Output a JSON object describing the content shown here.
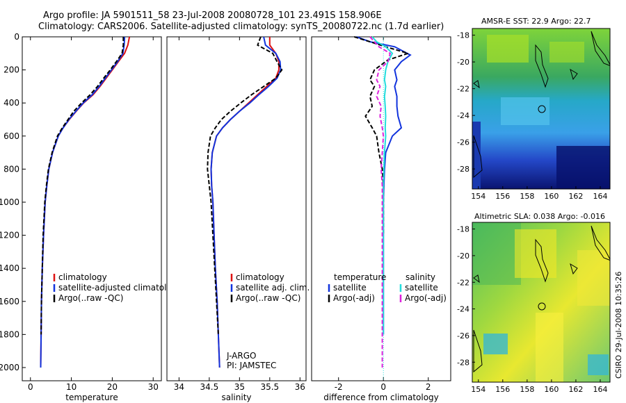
{
  "title_line1": "Argo profile: JA 5901511_58 23-Jul-2008 20080728_101 23.491S 158.906E",
  "title_line2": "Climatology: CARS2006. Satellite-adjusted climatology: synTS_20080722.nc (1.7d earlier)",
  "footer_note": "CSIRO 29-Jul-2008 10:35:26",
  "colors": {
    "climatology": "#dd1111",
    "satellite": "#1133dd",
    "argo": "#000000",
    "sat_salinity": "#22dddd",
    "argo_salinity": "#dd22dd"
  },
  "chart_data": [
    {
      "id": "temperature",
      "type": "line",
      "xlabel": "temperature",
      "ylabel": "",
      "xlim": [
        -2,
        32
      ],
      "ylim": [
        2080,
        0
      ],
      "xticks": [
        "0",
        "10",
        "20",
        "30"
      ],
      "xtick_values": [
        0,
        10,
        20,
        30
      ],
      "yticks": [
        "0",
        "200",
        "400",
        "600",
        "800",
        "1000",
        "1200",
        "1400",
        "1600",
        "1800",
        "2000"
      ],
      "ytick_values": [
        0,
        200,
        400,
        600,
        800,
        1000,
        1200,
        1400,
        1600,
        1800,
        2000
      ],
      "legend": [
        "climatology",
        "satellite-adjusted climatology",
        "Argo(..raw -QC)"
      ],
      "legend_position": "lower-right",
      "series": [
        {
          "name": "climatology",
          "color_key": "climatology",
          "dash": "",
          "x": [
            24.2,
            23.8,
            23.0,
            21.5,
            20.0,
            18.5,
            17.0,
            15.3,
            13.0,
            11.2,
            9.5,
            8.0,
            6.8,
            5.4,
            4.5,
            4.0,
            3.6,
            3.2,
            2.9,
            2.7,
            2.6,
            2.5
          ],
          "y": [
            0,
            50,
            100,
            150,
            200,
            250,
            300,
            350,
            400,
            450,
            500,
            550,
            600,
            700,
            800,
            900,
            1000,
            1200,
            1400,
            1600,
            1800,
            2000
          ]
        },
        {
          "name": "satellite-adjusted climatology",
          "color_key": "satellite",
          "dash": "",
          "x": [
            23.0,
            22.9,
            22.6,
            21.3,
            19.8,
            18.3,
            16.8,
            15.1,
            12.9,
            11.1,
            9.4,
            8.0,
            6.8,
            5.4,
            4.5,
            4.0,
            3.6,
            3.2,
            2.9,
            2.7,
            2.6,
            2.5
          ],
          "y": [
            0,
            50,
            100,
            150,
            200,
            250,
            300,
            350,
            400,
            450,
            500,
            550,
            600,
            700,
            800,
            900,
            1000,
            1200,
            1400,
            1600,
            1800,
            2000
          ]
        },
        {
          "name": "Argo(..raw -QC)",
          "color_key": "argo",
          "dash": "6,3",
          "x": [
            22.7,
            22.7,
            22.4,
            21.0,
            19.5,
            17.9,
            16.4,
            14.6,
            12.5,
            10.6,
            9.2,
            7.8,
            6.6,
            5.3,
            4.4,
            3.9,
            3.5,
            3.1,
            2.9,
            2.7,
            2.6
          ],
          "y": [
            0,
            50,
            100,
            150,
            200,
            250,
            300,
            350,
            400,
            450,
            500,
            550,
            600,
            700,
            800,
            900,
            1000,
            1200,
            1400,
            1600,
            1800
          ]
        }
      ]
    },
    {
      "id": "salinity",
      "type": "line",
      "xlabel": "salinity",
      "ylabel": "",
      "xlim": [
        33.8,
        36.1
      ],
      "ylim": [
        2080,
        0
      ],
      "xticks": [
        "34",
        "34.5",
        "35",
        "35.5",
        "36"
      ],
      "xtick_values": [
        34,
        34.5,
        35,
        35.5,
        36
      ],
      "yticks": [],
      "legend": [
        "climatology",
        "satellite adj. clim.",
        "Argo(..raw -QC)"
      ],
      "legend_position": "lower-right",
      "annotation": [
        "J-ARGO",
        "PI: JAMSTEC"
      ],
      "series": [
        {
          "name": "climatology",
          "color_key": "climatology",
          "dash": "",
          "x": [
            35.5,
            35.5,
            35.6,
            35.65,
            35.65,
            35.6,
            35.45,
            35.3,
            35.15,
            35.0,
            34.85,
            34.72,
            34.62,
            34.55,
            34.53,
            34.54,
            34.56,
            34.58,
            34.6,
            34.63,
            34.65,
            34.67
          ],
          "y": [
            0,
            50,
            100,
            150,
            200,
            250,
            300,
            350,
            400,
            450,
            500,
            550,
            600,
            700,
            800,
            900,
            1000,
            1200,
            1400,
            1600,
            1800,
            2000
          ]
        },
        {
          "name": "satellite adj. clim.",
          "color_key": "satellite",
          "dash": "",
          "x": [
            35.4,
            35.43,
            35.6,
            35.67,
            35.68,
            35.62,
            35.48,
            35.32,
            35.17,
            35.0,
            34.85,
            34.72,
            34.62,
            34.55,
            34.53,
            34.54,
            34.56,
            34.58,
            34.6,
            34.63,
            34.65,
            34.67
          ],
          "y": [
            0,
            50,
            100,
            150,
            200,
            250,
            300,
            350,
            400,
            450,
            500,
            550,
            600,
            700,
            800,
            900,
            1000,
            1200,
            1400,
            1600,
            1800,
            2000
          ]
        },
        {
          "name": "Argo(..raw -QC)",
          "color_key": "argo",
          "dash": "6,3",
          "x": [
            35.35,
            35.3,
            35.55,
            35.62,
            35.7,
            35.6,
            35.4,
            35.2,
            35.02,
            34.85,
            34.7,
            34.6,
            34.52,
            34.48,
            34.47,
            34.5,
            34.53,
            34.56,
            34.59,
            34.62,
            34.65
          ],
          "y": [
            0,
            50,
            100,
            150,
            200,
            250,
            300,
            350,
            400,
            450,
            500,
            550,
            600,
            700,
            800,
            900,
            1000,
            1200,
            1400,
            1600,
            1800
          ]
        }
      ]
    },
    {
      "id": "difference",
      "type": "line",
      "xlabel": "difference from climatology",
      "ylabel": "",
      "xlim": [
        -3.2,
        3.0
      ],
      "ylim": [
        2080,
        0
      ],
      "xticks": [
        "-2",
        "0",
        "2"
      ],
      "xtick_values": [
        -2,
        0,
        2
      ],
      "yticks": [],
      "legend_headers": [
        "temperature",
        "salinity"
      ],
      "legend": [
        "satellite",
        "Argo(-adj)",
        "satellite",
        "Argo(-adj)"
      ],
      "legend_position": "lower-right",
      "series": [
        {
          "name": "temperature satellite",
          "color_key": "satellite",
          "dash": "",
          "x": [
            -1.2,
            -0.6,
            0.5,
            1.2,
            0.8,
            0.5,
            0.6,
            0.5,
            0.6,
            0.6,
            0.65,
            0.8,
            0.4,
            0.1,
            0.05,
            0.02,
            0.0,
            0.0,
            0.0,
            0.0,
            0.0
          ],
          "y": [
            0,
            30,
            60,
            110,
            150,
            200,
            260,
            300,
            360,
            420,
            480,
            550,
            600,
            700,
            800,
            900,
            1000,
            1200,
            1400,
            1600,
            1800
          ]
        },
        {
          "name": "temperature Argo(-adj)",
          "color_key": "argo",
          "dash": "6,3",
          "x": [
            -1.3,
            -0.6,
            0.1,
            1.1,
            0.2,
            -0.4,
            -0.6,
            -0.4,
            -0.6,
            -0.5,
            -0.8,
            -0.5,
            -0.3,
            -0.2,
            -0.05,
            0.0,
            0.0,
            0.0
          ],
          "y": [
            0,
            30,
            60,
            100,
            140,
            200,
            260,
            300,
            360,
            420,
            480,
            550,
            600,
            700,
            800,
            900,
            1000,
            1200
          ]
        },
        {
          "name": "salinity satellite",
          "color_key": "sat_salinity",
          "dash": "",
          "x": [
            -0.5,
            -0.3,
            0.1,
            0.4,
            0.2,
            0.1,
            0.05,
            0.1,
            0.05,
            0.08,
            0.1,
            0.08,
            0.1,
            0.05,
            0.02,
            0.0,
            0.0,
            0.0,
            0.0,
            0.0,
            0.0
          ],
          "y": [
            0,
            30,
            60,
            100,
            150,
            200,
            260,
            300,
            360,
            420,
            480,
            550,
            600,
            700,
            800,
            900,
            1000,
            1200,
            1400,
            1600,
            1800
          ]
        },
        {
          "name": "salinity Argo(-adj)",
          "color_key": "argo_salinity",
          "dash": "6,3",
          "x": [
            -0.6,
            -0.4,
            -0.2,
            0.3,
            0.2,
            -0.2,
            -0.3,
            -0.15,
            -0.3,
            -0.1,
            -0.15,
            -0.05,
            0.0,
            -0.05,
            -0.1,
            -0.05,
            -0.05,
            -0.05,
            -0.05,
            -0.05,
            -0.05,
            -0.05
          ],
          "y": [
            0,
            30,
            60,
            100,
            150,
            200,
            260,
            300,
            360,
            420,
            480,
            550,
            600,
            700,
            800,
            900,
            1000,
            1200,
            1400,
            1600,
            1800,
            2000
          ]
        }
      ]
    },
    {
      "id": "sst_map",
      "type": "heatmap",
      "title": "AMSR-E SST: 22.9 Argo: 22.7",
      "xlim": [
        153.5,
        164.8
      ],
      "ylim": [
        -29.5,
        -17.5
      ],
      "xticks": [
        "154",
        "156",
        "158",
        "160",
        "162",
        "164"
      ],
      "xtick_values": [
        154,
        156,
        158,
        160,
        162,
        164
      ],
      "yticks": [
        "-18",
        "-20",
        "-22",
        "-24",
        "-26",
        "-28"
      ],
      "ytick_values": [
        -18,
        -20,
        -22,
        -24,
        -26,
        -28
      ],
      "profile_location": [
        158.906,
        -23.491
      ]
    },
    {
      "id": "sla_map",
      "type": "heatmap",
      "title": "Altimetric SLA: 0.038 Argo: -0.016",
      "xlim": [
        153.5,
        164.8
      ],
      "ylim": [
        -29.5,
        -17.5
      ],
      "xticks": [
        "154",
        "156",
        "158",
        "160",
        "162",
        "164"
      ],
      "xtick_values": [
        154,
        156,
        158,
        160,
        162,
        164
      ],
      "yticks": [
        "-18",
        "-20",
        "-22",
        "-24",
        "-26",
        "-28"
      ],
      "ytick_values": [
        -18,
        -20,
        -22,
        -24,
        -26,
        -28
      ],
      "profile_location": [
        158.906,
        -23.491
      ]
    }
  ]
}
